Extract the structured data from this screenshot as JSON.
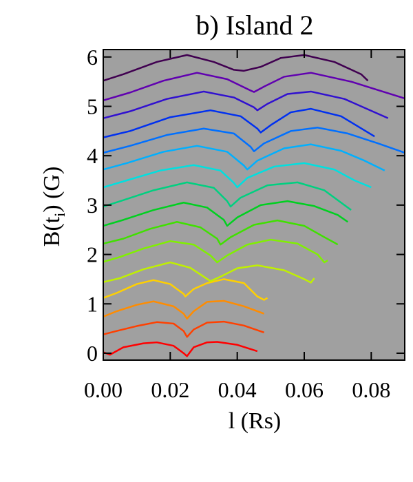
{
  "chart_data": {
    "type": "line",
    "title": "b) Island 2",
    "xlabel": "l (Rs)",
    "ylabel_parts": [
      "B(t",
      "i",
      ") (G)"
    ],
    "xlim": [
      0,
      0.09
    ],
    "ylim": [
      -0.14,
      6.15
    ],
    "xticks": [
      {
        "value": 0,
        "label": "0.00"
      },
      {
        "value": 0.02,
        "label": "0.02"
      },
      {
        "value": 0.04,
        "label": "0.04"
      },
      {
        "value": 0.06,
        "label": "0.06"
      },
      {
        "value": 0.08,
        "label": "0.08"
      }
    ],
    "yticks": [
      0,
      1,
      2,
      3,
      4,
      5,
      6
    ],
    "background": "#a0a0a0",
    "series": [
      {
        "color": "#ff0000",
        "x": [
          0,
          0.002,
          0.006,
          0.012,
          0.016,
          0.021,
          0.024,
          0.025,
          0.027,
          0.031,
          0.034,
          0.04,
          0.046
        ],
        "values": [
          0.02,
          -0.03,
          0.12,
          0.2,
          0.22,
          0.15,
          0.0,
          -0.06,
          0.12,
          0.22,
          0.23,
          0.17,
          0.04
        ]
      },
      {
        "color": "#ff4000",
        "x": [
          0,
          0.004,
          0.01,
          0.016,
          0.021,
          0.024,
          0.025,
          0.027,
          0.031,
          0.036,
          0.042,
          0.048
        ],
        "values": [
          0.38,
          0.45,
          0.55,
          0.63,
          0.6,
          0.45,
          0.33,
          0.48,
          0.62,
          0.64,
          0.56,
          0.42
        ]
      },
      {
        "color": "#ff8c00",
        "x": [
          0,
          0.004,
          0.01,
          0.015,
          0.021,
          0.024,
          0.025,
          0.027,
          0.031,
          0.036,
          0.042,
          0.048
        ],
        "values": [
          0.74,
          0.85,
          0.98,
          1.05,
          0.95,
          0.8,
          0.7,
          0.85,
          1.04,
          1.06,
          0.95,
          0.8
        ]
      },
      {
        "color": "#ffd000",
        "x": [
          0,
          0.004,
          0.01,
          0.015,
          0.02,
          0.024,
          0.0245,
          0.027,
          0.031,
          0.036,
          0.042,
          0.046,
          0.048,
          0.049
        ],
        "values": [
          1.12,
          1.22,
          1.4,
          1.48,
          1.4,
          1.2,
          1.15,
          1.3,
          1.42,
          1.5,
          1.42,
          1.15,
          1.08,
          1.12
        ]
      },
      {
        "color": "#c0f000",
        "x": [
          0,
          0.005,
          0.012,
          0.02,
          0.026,
          0.03,
          0.032,
          0.035,
          0.04,
          0.046,
          0.054,
          0.06,
          0.062,
          0.063
        ],
        "values": [
          1.44,
          1.52,
          1.7,
          1.84,
          1.73,
          1.55,
          1.46,
          1.55,
          1.72,
          1.78,
          1.68,
          1.5,
          1.43,
          1.52
        ]
      },
      {
        "color": "#80f000",
        "x": [
          0,
          0.005,
          0.012,
          0.02,
          0.027,
          0.032,
          0.034,
          0.037,
          0.043,
          0.05,
          0.058,
          0.064,
          0.066,
          0.067
        ],
        "values": [
          1.85,
          1.95,
          2.12,
          2.27,
          2.2,
          1.98,
          1.84,
          1.98,
          2.2,
          2.3,
          2.22,
          2.0,
          1.84,
          1.88
        ]
      },
      {
        "color": "#40e000",
        "x": [
          0,
          0.006,
          0.014,
          0.022,
          0.029,
          0.034,
          0.035,
          0.038,
          0.045,
          0.052,
          0.06,
          0.066,
          0.069,
          0.07
        ],
        "values": [
          2.22,
          2.32,
          2.52,
          2.66,
          2.55,
          2.32,
          2.2,
          2.35,
          2.6,
          2.69,
          2.58,
          2.35,
          2.24,
          2.2
        ]
      },
      {
        "color": "#00d020",
        "x": [
          0,
          0.006,
          0.015,
          0.024,
          0.031,
          0.036,
          0.037,
          0.04,
          0.047,
          0.055,
          0.063,
          0.07,
          0.073
        ],
        "values": [
          2.58,
          2.7,
          2.9,
          3.05,
          2.95,
          2.7,
          2.58,
          2.75,
          3.0,
          3.08,
          2.98,
          2.8,
          2.66
        ]
      },
      {
        "color": "#00d080",
        "x": [
          0,
          0.006,
          0.015,
          0.025,
          0.033,
          0.037,
          0.038,
          0.041,
          0.049,
          0.058,
          0.066,
          0.074
        ],
        "values": [
          2.97,
          3.1,
          3.3,
          3.46,
          3.35,
          3.08,
          2.97,
          3.15,
          3.4,
          3.46,
          3.3,
          2.9
        ]
      },
      {
        "color": "#00e0e0",
        "x": [
          0,
          0.007,
          0.017,
          0.027,
          0.035,
          0.039,
          0.04,
          0.043,
          0.051,
          0.06,
          0.069,
          0.075,
          0.08
        ],
        "values": [
          3.36,
          3.5,
          3.7,
          3.81,
          3.7,
          3.45,
          3.36,
          3.55,
          3.78,
          3.85,
          3.72,
          3.5,
          3.36
        ]
      },
      {
        "color": "#00b0ff",
        "x": [
          0,
          0.007,
          0.018,
          0.028,
          0.037,
          0.042,
          0.043,
          0.046,
          0.054,
          0.062,
          0.071,
          0.078,
          0.084
        ],
        "values": [
          3.72,
          3.85,
          4.08,
          4.2,
          4.08,
          3.8,
          3.72,
          3.9,
          4.15,
          4.23,
          4.1,
          3.9,
          3.7
        ]
      },
      {
        "color": "#0070ff",
        "x": [
          0,
          0.008,
          0.019,
          0.03,
          0.039,
          0.044,
          0.045,
          0.048,
          0.056,
          0.064,
          0.073,
          0.082,
          0.09
        ],
        "values": [
          4.06,
          4.2,
          4.42,
          4.55,
          4.45,
          4.18,
          4.09,
          4.25,
          4.5,
          4.57,
          4.45,
          4.25,
          4.06
        ]
      },
      {
        "color": "#0030f0",
        "x": [
          0,
          0.008,
          0.02,
          0.032,
          0.041,
          0.046,
          0.047,
          0.05,
          0.056,
          0.062,
          0.071,
          0.081
        ],
        "values": [
          4.37,
          4.5,
          4.78,
          4.92,
          4.8,
          4.55,
          4.47,
          4.62,
          4.88,
          4.95,
          4.8,
          4.39
        ]
      },
      {
        "color": "#3010d0",
        "x": [
          0,
          0.008,
          0.019,
          0.03,
          0.039,
          0.045,
          0.046,
          0.049,
          0.055,
          0.062,
          0.072,
          0.085
        ],
        "values": [
          4.76,
          4.9,
          5.15,
          5.3,
          5.18,
          4.98,
          4.92,
          5.05,
          5.25,
          5.3,
          5.15,
          4.76
        ]
      },
      {
        "color": "#6000b0",
        "x": [
          0,
          0.008,
          0.018,
          0.028,
          0.037,
          0.044,
          0.045,
          0.048,
          0.054,
          0.062,
          0.074,
          0.09
        ],
        "values": [
          5.12,
          5.28,
          5.52,
          5.68,
          5.55,
          5.32,
          5.29,
          5.4,
          5.6,
          5.68,
          5.5,
          5.16
        ]
      },
      {
        "color": "#400050",
        "x": [
          0,
          0.006,
          0.016,
          0.025,
          0.033,
          0.039,
          0.042,
          0.047,
          0.053,
          0.06,
          0.069,
          0.077,
          0.079
        ],
        "values": [
          5.52,
          5.65,
          5.9,
          6.04,
          5.9,
          5.74,
          5.72,
          5.8,
          5.98,
          6.04,
          5.9,
          5.65,
          5.52
        ]
      }
    ]
  }
}
